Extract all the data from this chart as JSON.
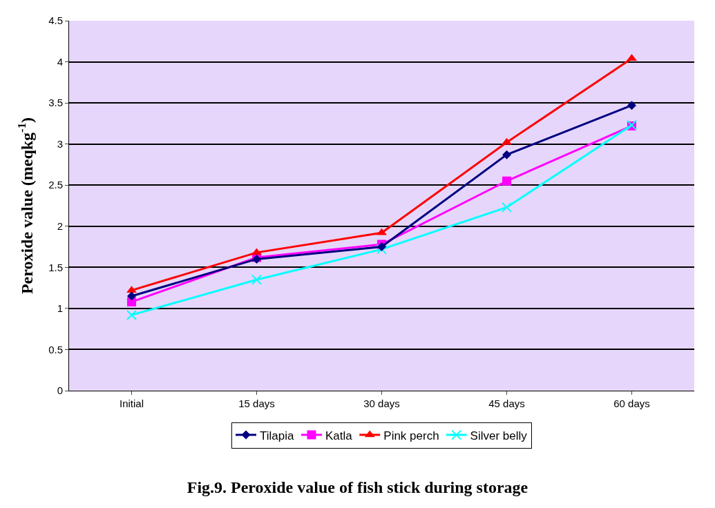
{
  "chart_data": {
    "type": "line",
    "title": "Fig.9. Peroxide value of fish stick during storage",
    "ylabel": "Peroxide value (meqkg$^{-1}$)",
    "categories": [
      "Initial",
      "15 days",
      "30 days",
      "45 days",
      "60 days"
    ],
    "series": [
      {
        "name": "Tilapia",
        "color": "#000080",
        "marker": "diamond",
        "values": [
          1.15,
          1.6,
          1.75,
          2.87,
          3.47
        ]
      },
      {
        "name": "Katla",
        "color": "#ff00ff",
        "marker": "square",
        "values": [
          1.08,
          1.62,
          1.78,
          2.55,
          3.22
        ]
      },
      {
        "name": "Pink perch",
        "color": "#ff0000",
        "marker": "triangle",
        "values": [
          1.22,
          1.68,
          1.92,
          3.02,
          4.04
        ]
      },
      {
        "name": "Silver belly",
        "color": "#00ffff",
        "marker": "cross",
        "values": [
          0.92,
          1.35,
          1.72,
          2.23,
          3.23
        ]
      }
    ],
    "ylim": [
      0,
      4.5
    ],
    "yticks": [
      0,
      0.5,
      1,
      1.5,
      2,
      2.5,
      3,
      3.5,
      4,
      4.5
    ],
    "grid": "y",
    "legend": "bottom",
    "line_style": "solid"
  }
}
